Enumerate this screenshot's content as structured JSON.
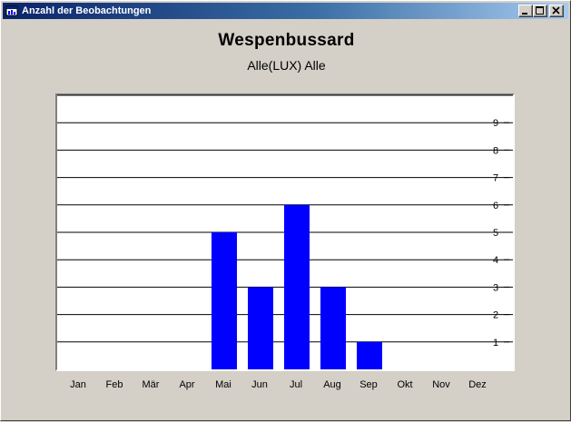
{
  "window": {
    "title": "Anzahl der Beobachtungen",
    "title_icon": "app-window-icon",
    "controls": [
      "minimize-icon",
      "maximize-icon",
      "close-icon"
    ]
  },
  "colors": {
    "bar": "#0000ff",
    "titlebar_start": "#0a246a",
    "titlebar_end": "#a6caf0",
    "face": "#d4d0c8"
  },
  "chart_data": {
    "type": "bar",
    "title": "Wespenbussard",
    "subtitle": "Alle(LUX) Alle",
    "categories": [
      "Jan",
      "Feb",
      "Mär",
      "Apr",
      "Mai",
      "Jun",
      "Jul",
      "Aug",
      "Sep",
      "Okt",
      "Nov",
      "Dez"
    ],
    "values": [
      0,
      0,
      0,
      0,
      5,
      3,
      6,
      3,
      1,
      0,
      0,
      0
    ],
    "y_ticks": [
      1,
      2,
      3,
      4,
      5,
      6,
      7,
      8,
      9
    ],
    "ylim": [
      0,
      10
    ],
    "grid": true,
    "y_axis_side": "right"
  }
}
